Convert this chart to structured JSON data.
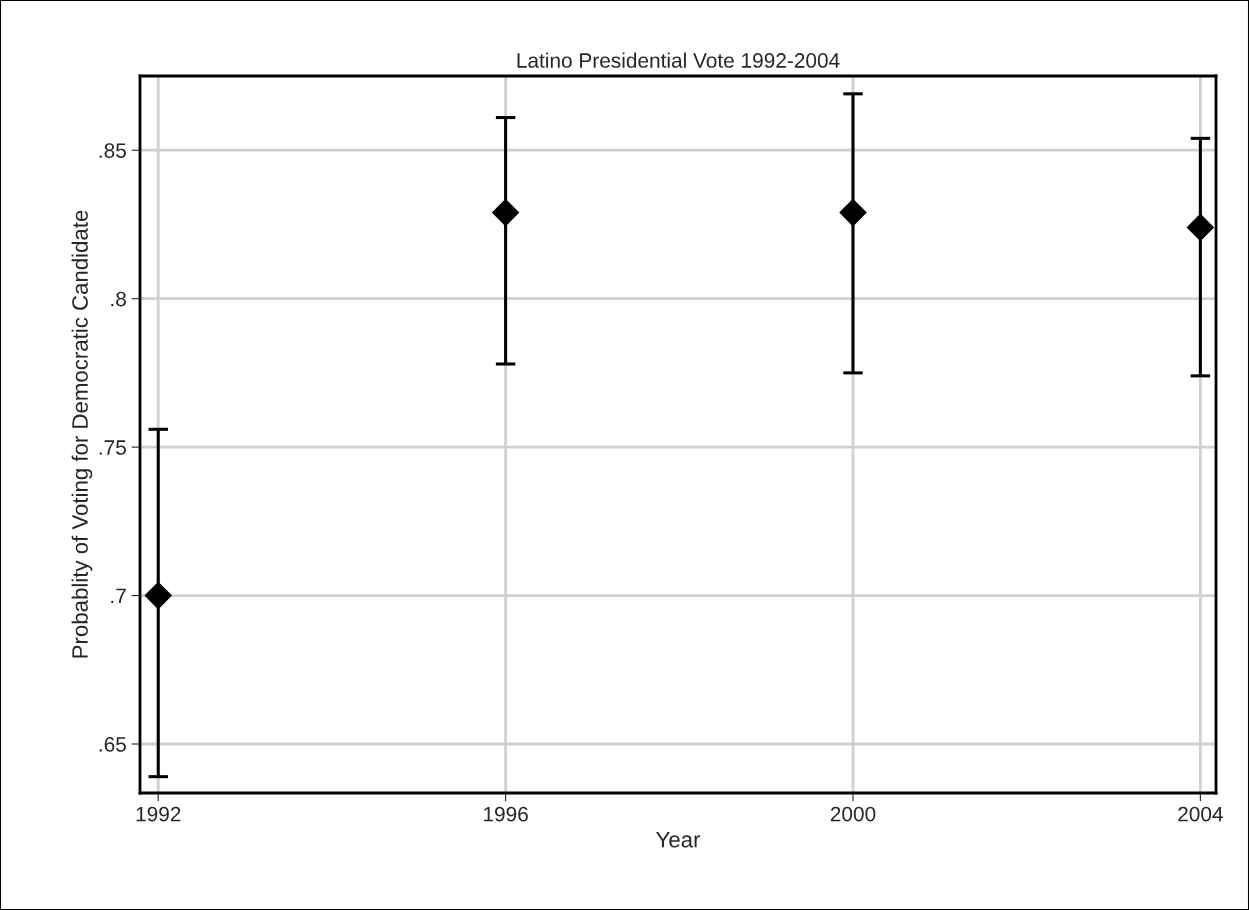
{
  "chart_data": {
    "type": "scatter",
    "title": "Latino Presidential Vote 1992-2004",
    "xlabel": "Year",
    "ylabel": "Probablity of Voting for Democratic Candidate",
    "x": [
      1992,
      1996,
      2000,
      2004
    ],
    "series": [
      {
        "color": "#000000",
        "values": [
          0.7,
          0.829,
          0.829,
          0.824
        ],
        "errors": [
          [
            0.639,
            0.756
          ],
          [
            0.778,
            0.861
          ],
          [
            0.775,
            0.869
          ],
          [
            0.774,
            0.854
          ]
        ]
      }
    ],
    "marker": "diamond",
    "grid": true,
    "legend": false,
    "xlim": [
      1991.79,
      2004.18
    ],
    "xticks": [
      1992,
      1996,
      2000,
      2004
    ],
    "ylim": [
      0.6335,
      0.875
    ],
    "yticks": [
      {
        "value": 0.65,
        "label": ".65"
      },
      {
        "value": 0.7,
        "label": ".7"
      },
      {
        "value": 0.75,
        "label": ".75"
      },
      {
        "value": 0.8,
        "label": ".8"
      },
      {
        "value": 0.85,
        "label": ".85"
      }
    ]
  }
}
